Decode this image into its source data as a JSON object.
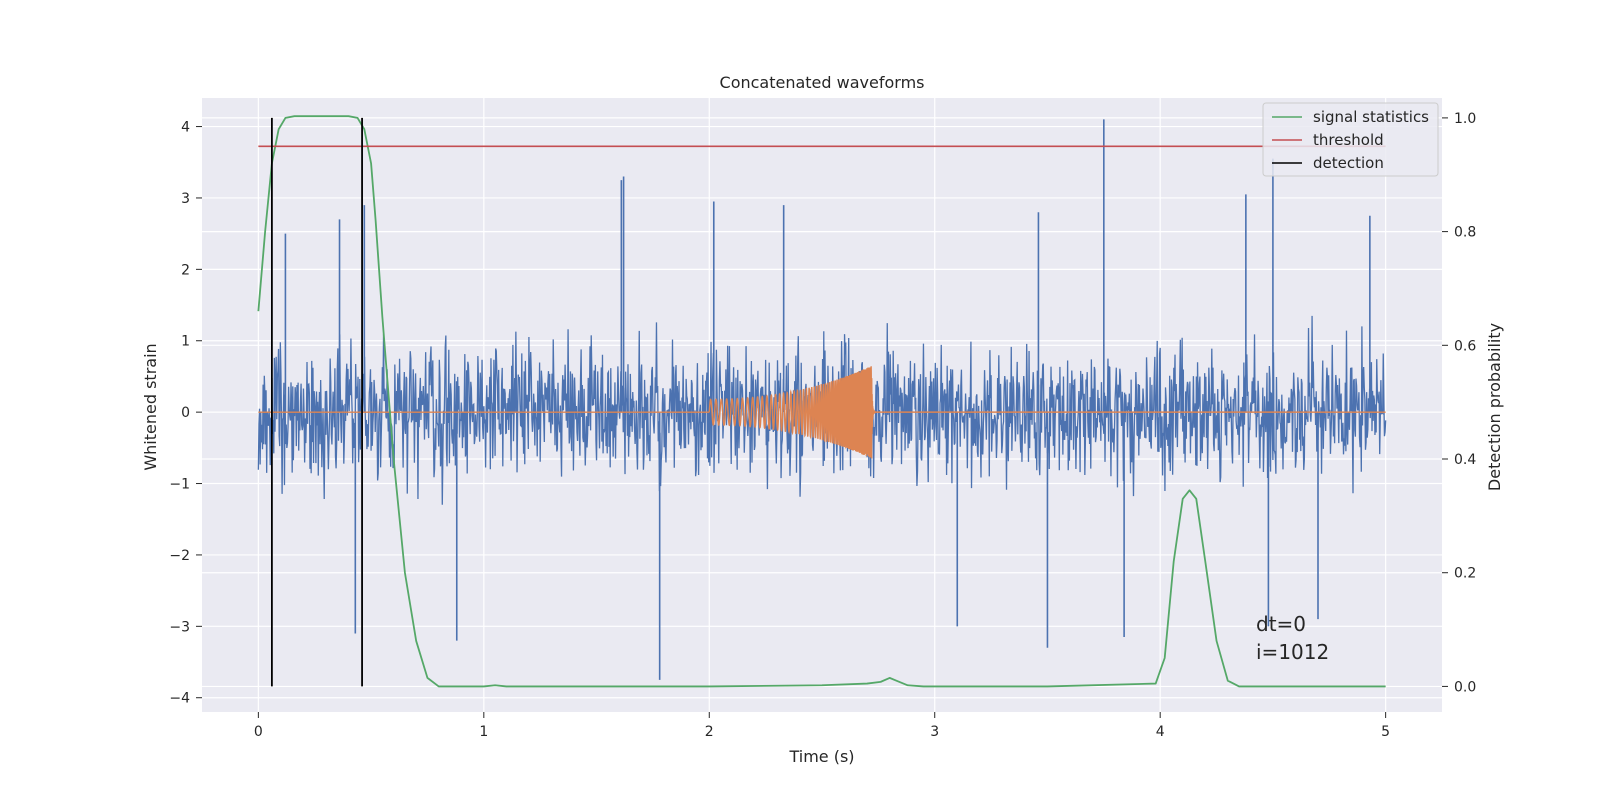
{
  "chart_data": {
    "type": "line",
    "title": "Concatenated waveforms",
    "xlabel": "Time (s)",
    "ylabel": "Whitened strain",
    "y2label": "Detection probability",
    "xlim": [
      -0.25,
      5.25
    ],
    "ylim": [
      -4.2,
      4.4
    ],
    "y2lim": [
      -0.045,
      1.035
    ],
    "xticks": [
      "0",
      "1",
      "2",
      "3",
      "4",
      "5"
    ],
    "yticks": [
      "4",
      "3",
      "2",
      "1",
      "0",
      "−1",
      "−2",
      "−3",
      "−4"
    ],
    "y2ticks": [
      "1.0",
      "0.8",
      "0.6",
      "0.4",
      "0.2",
      "0.0"
    ],
    "grid": true,
    "legend_position": "top-right",
    "annotations": [
      "dt=0",
      "i=1012"
    ],
    "series": [
      {
        "kind": "noise",
        "color": "#4c72b0",
        "x_range": [
          0,
          5
        ],
        "typical_range": [
          -1.5,
          1.5
        ],
        "spikes": [
          {
            "x": 0.12,
            "y": 2.5
          },
          {
            "x": 0.36,
            "y": 2.7
          },
          {
            "x": 0.47,
            "y": 2.9
          },
          {
            "x": 1.62,
            "y": 3.3
          },
          {
            "x": 1.61,
            "y": 3.25
          },
          {
            "x": 2.02,
            "y": 2.95
          },
          {
            "x": 2.33,
            "y": 2.9
          },
          {
            "x": 3.46,
            "y": 2.8
          },
          {
            "x": 3.75,
            "y": 4.1
          },
          {
            "x": 4.38,
            "y": 3.05
          },
          {
            "x": 4.5,
            "y": 3.55
          },
          {
            "x": 4.93,
            "y": 2.75
          },
          {
            "x": 0.43,
            "y": -3.1
          },
          {
            "x": 0.88,
            "y": -3.2
          },
          {
            "x": 1.78,
            "y": -3.75
          },
          {
            "x": 3.1,
            "y": -3.0
          },
          {
            "x": 3.5,
            "y": -3.3
          },
          {
            "x": 3.84,
            "y": -3.15
          },
          {
            "x": 4.48,
            "y": -3.0
          },
          {
            "x": 4.7,
            "y": -2.9
          }
        ]
      },
      {
        "kind": "chirp",
        "color": "#dd8452",
        "x_range": [
          0,
          5
        ],
        "chirp_start": 2.0,
        "chirp_merger": 2.72,
        "amp_start": 0.18,
        "amp_peak": 0.65
      },
      {
        "name": "signal statistics",
        "color": "#55a868",
        "axis": "right",
        "x": [
          0,
          0.03,
          0.06,
          0.09,
          0.12,
          0.16,
          0.2,
          0.3,
          0.4,
          0.44,
          0.47,
          0.5,
          0.52,
          0.55,
          0.6,
          0.65,
          0.7,
          0.75,
          0.8,
          1.0,
          1.05,
          1.1,
          2.0,
          2.5,
          2.7,
          2.76,
          2.8,
          2.83,
          2.88,
          2.95,
          3.5,
          3.98,
          4.02,
          4.06,
          4.1,
          4.13,
          4.16,
          4.2,
          4.25,
          4.3,
          4.35,
          4.5,
          5.0
        ],
        "y": [
          0.66,
          0.8,
          0.92,
          0.98,
          1.0,
          1.003,
          1.003,
          1.003,
          1.003,
          1.0,
          0.98,
          0.92,
          0.82,
          0.65,
          0.4,
          0.2,
          0.08,
          0.015,
          0.0,
          0.0,
          0.002,
          0.0,
          0.0,
          0.002,
          0.005,
          0.008,
          0.015,
          0.01,
          0.002,
          0.0,
          0.0,
          0.005,
          0.05,
          0.22,
          0.33,
          0.345,
          0.33,
          0.22,
          0.08,
          0.01,
          0.0,
          0.0,
          0.0
        ]
      },
      {
        "name": "threshold",
        "color": "#c44e52",
        "axis": "right",
        "x": [
          0,
          5
        ],
        "y": [
          0.95,
          0.95
        ]
      },
      {
        "name": "detection",
        "color": "#000000",
        "kind": "vlines",
        "x": [
          0.06,
          0.46
        ]
      }
    ]
  }
}
